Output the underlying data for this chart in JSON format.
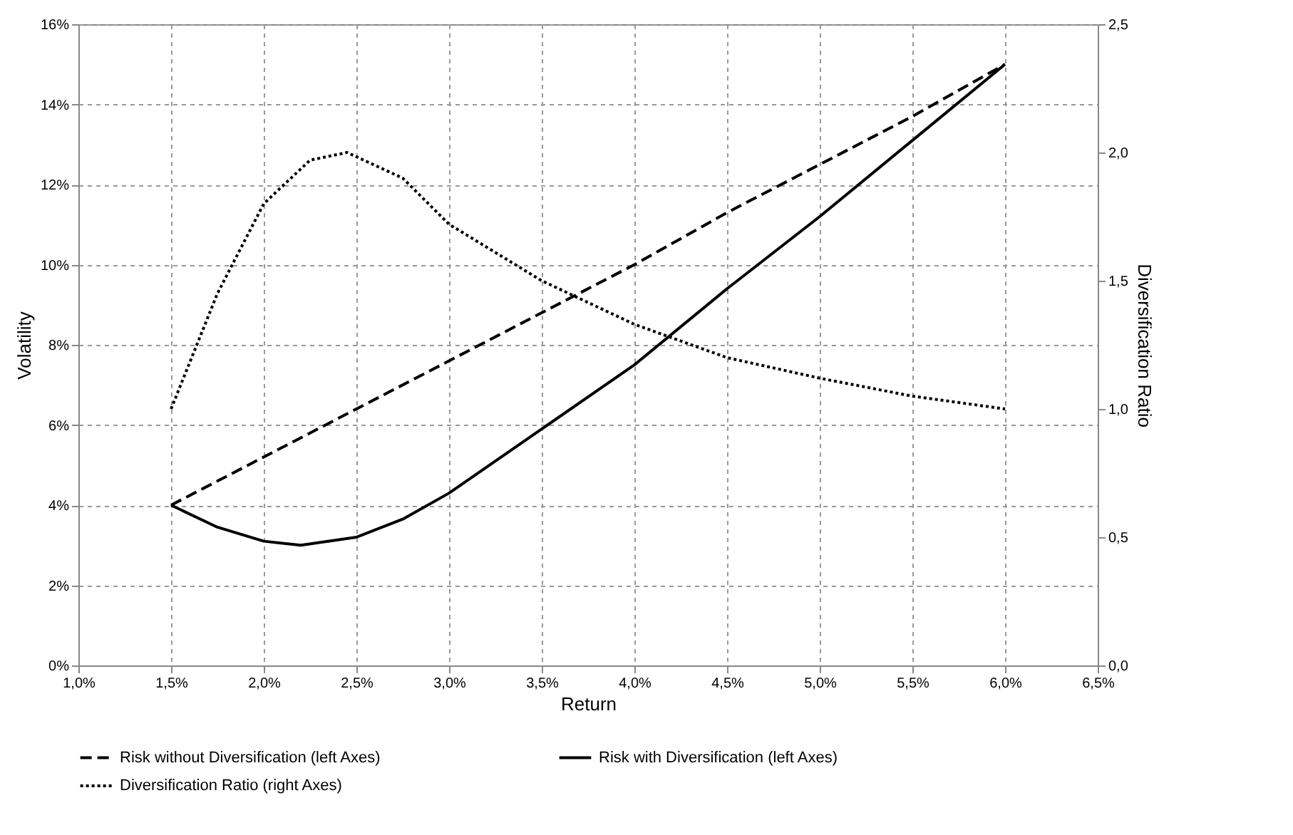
{
  "chart_data": {
    "type": "line",
    "xlabel": "Return",
    "ylabel": "Volatility",
    "y2label": "Diversification Ratio",
    "xlim": [
      1.0,
      6.5
    ],
    "xticks": [
      {
        "value": 1.0,
        "label": "1,0%"
      },
      {
        "value": 1.5,
        "label": "1,5%"
      },
      {
        "value": 2.0,
        "label": "2,0%"
      },
      {
        "value": 2.5,
        "label": "2,5%"
      },
      {
        "value": 3.0,
        "label": "3,0%"
      },
      {
        "value": 3.5,
        "label": "3,5%"
      },
      {
        "value": 4.0,
        "label": "4,0%"
      },
      {
        "value": 4.5,
        "label": "4,5%"
      },
      {
        "value": 5.0,
        "label": "5,0%"
      },
      {
        "value": 5.5,
        "label": "5,5%"
      },
      {
        "value": 6.0,
        "label": "6,0%"
      },
      {
        "value": 6.5,
        "label": "6,5%"
      }
    ],
    "ylim": [
      0,
      16
    ],
    "yticks": [
      {
        "value": 0,
        "label": "0%"
      },
      {
        "value": 2,
        "label": "2%"
      },
      {
        "value": 4,
        "label": "4%"
      },
      {
        "value": 6,
        "label": "6%"
      },
      {
        "value": 8,
        "label": "8%"
      },
      {
        "value": 10,
        "label": "10%"
      },
      {
        "value": 12,
        "label": "12%"
      },
      {
        "value": 14,
        "label": "14%"
      },
      {
        "value": 16,
        "label": "16%"
      }
    ],
    "y2lim": [
      0,
      2.5
    ],
    "y2ticks": [
      {
        "value": 0,
        "label": "0,0"
      },
      {
        "value": 0.5,
        "label": "0,5"
      },
      {
        "value": 1.0,
        "label": "1,0"
      },
      {
        "value": 1.5,
        "label": "1,5"
      },
      {
        "value": 2.0,
        "label": "2,0"
      },
      {
        "value": 2.5,
        "label": "2,5"
      }
    ],
    "grid": true,
    "legend": "bottom",
    "series": [
      {
        "name": "Risk without Diversification (left Axes)",
        "color": "#000000",
        "line_style": "dashed",
        "x": [
          1.5,
          2.0,
          2.5,
          3.0,
          3.5,
          4.0,
          4.5,
          5.0,
          5.5,
          6.0
        ],
        "values": [
          4.0,
          5.2,
          6.4,
          7.6,
          8.8,
          10.0,
          11.3,
          12.5,
          13.7,
          15.0
        ]
      },
      {
        "name": "Risk with Diversification (left Axes)",
        "color": "#000000",
        "line_style": "solid",
        "x": [
          1.5,
          1.75,
          2.0,
          2.2,
          2.5,
          2.75,
          3.0,
          3.5,
          4.0,
          4.5,
          5.0,
          5.5,
          6.0
        ],
        "values": [
          4.0,
          3.45,
          3.1,
          3.0,
          3.2,
          3.65,
          4.3,
          5.9,
          7.5,
          9.4,
          11.2,
          13.1,
          15.0
        ]
      },
      {
        "name": "Diversification Ratio (right Axes)",
        "color": "#000000",
        "line_style": "dotted",
        "axis": "y2",
        "x": [
          1.5,
          1.75,
          2.0,
          2.25,
          2.45,
          2.75,
          3.0,
          3.5,
          4.0,
          4.5,
          5.0,
          5.5,
          6.0
        ],
        "values": [
          1.0,
          1.45,
          1.8,
          1.97,
          2.0,
          1.9,
          1.72,
          1.5,
          1.33,
          1.2,
          1.12,
          1.05,
          1.0
        ]
      }
    ]
  }
}
